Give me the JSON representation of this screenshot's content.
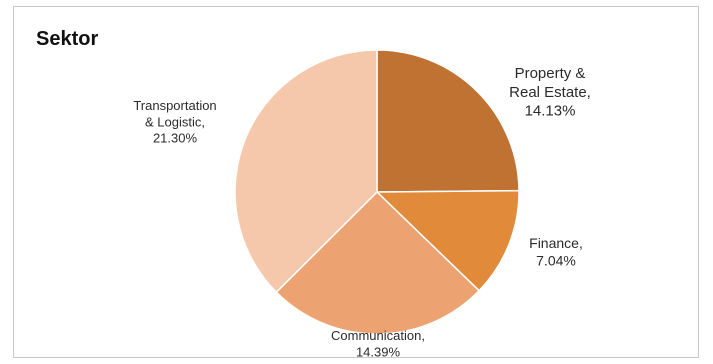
{
  "chart_data": {
    "type": "pie",
    "title": "Sektor",
    "slices": [
      {
        "label_lines": [
          "Property &",
          "Real Estate,",
          "14.13%"
        ],
        "value": 14.13,
        "color": "#c07232"
      },
      {
        "label_lines": [
          "Finance,",
          "7.04%"
        ],
        "value": 7.04,
        "color": "#e08a3a"
      },
      {
        "label_lines": [
          "Communication,",
          "14.39%"
        ],
        "value": 14.39,
        "color": "#eda271"
      },
      {
        "label_lines": [
          "Transportation",
          "& Logistic,",
          "21.30%"
        ],
        "value": 21.3,
        "color": "#f5c8ac"
      }
    ],
    "start_angle_deg": 0,
    "direction": "clockwise",
    "legend": "none"
  }
}
